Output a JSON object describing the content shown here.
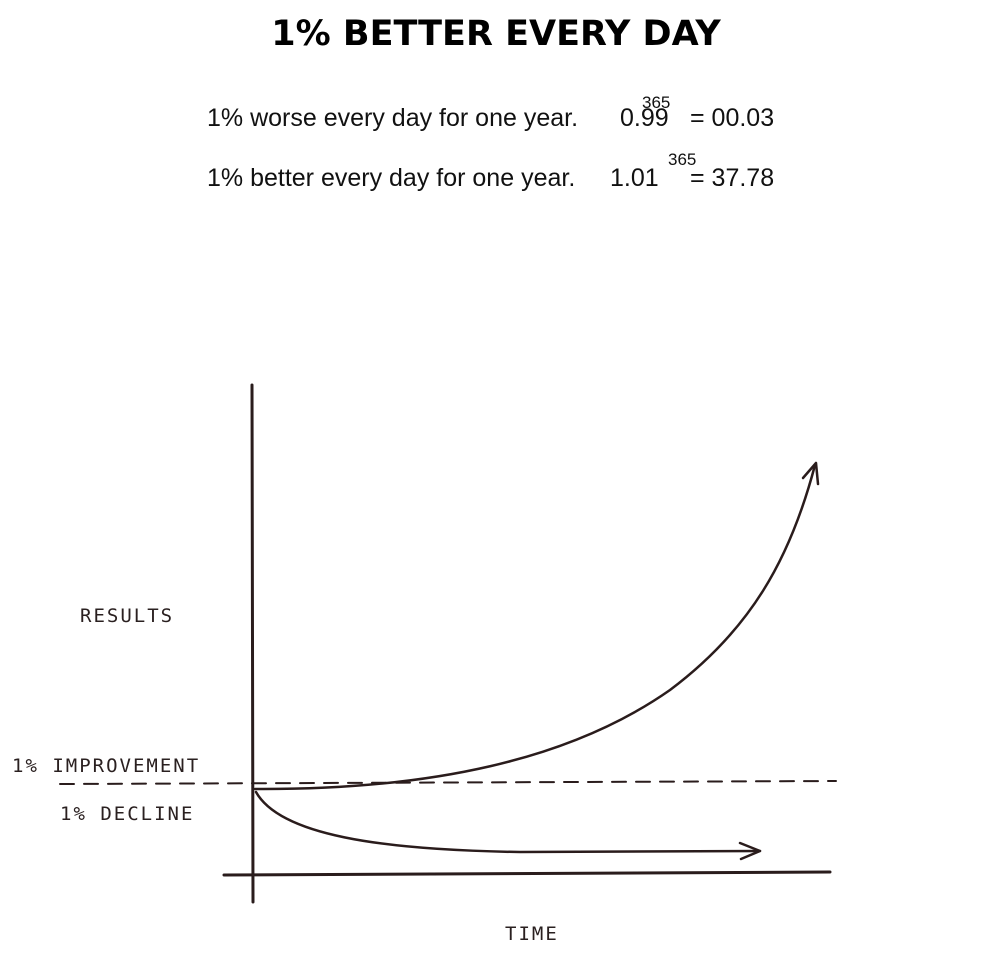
{
  "title": "1% BETTER EVERY DAY",
  "equations": [
    {
      "text": "1% worse every day for one year.",
      "base": "0.99",
      "exponent": "365",
      "result": "= 00.03"
    },
    {
      "text": "1% better every day for one year.",
      "base": "1.01",
      "exponent": "365",
      "result": "= 37.78"
    }
  ],
  "diagram": {
    "y_label": "RESULTS",
    "x_label": "TIME",
    "improvement_label": "1% IMPROVEMENT",
    "decline_label": "1% DECLINE"
  }
}
